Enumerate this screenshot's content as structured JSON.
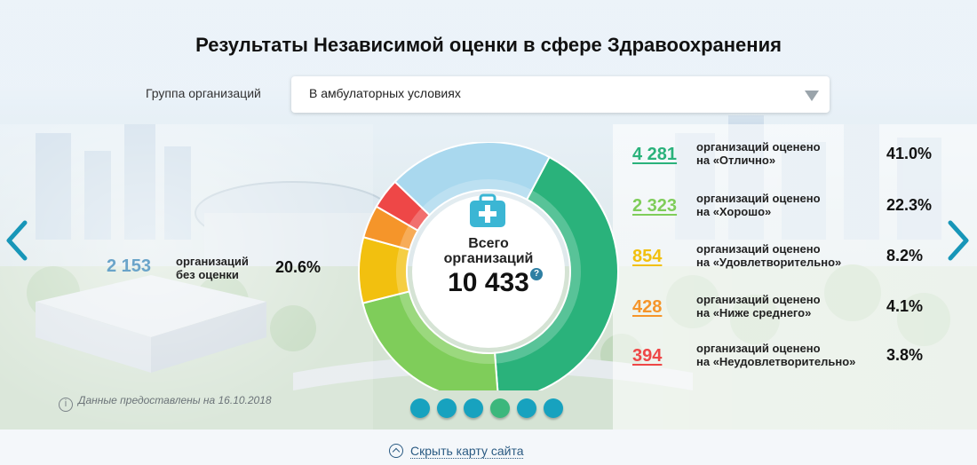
{
  "title": "Результаты Независимой оценки в сфере Здравоохранения",
  "filter": {
    "label": "Группа организаций",
    "selected": "В амбулаторных условиях"
  },
  "no_evaluation": {
    "count": "2 153",
    "desc_line1": "организаций",
    "desc_line2": "без оценки",
    "percent": "20.6%"
  },
  "center": {
    "label_line1": "Всего",
    "label_line2": "организаций",
    "total": "10 433"
  },
  "stats": [
    {
      "count": "4 281",
      "line1": "организаций оценено",
      "line2": "на «Отлично»",
      "percent": "41.0%",
      "color": "#2ab27b"
    },
    {
      "count": "2 323",
      "line1": "организаций оценено",
      "line2": "на «Хорошо»",
      "percent": "22.3%",
      "color": "#7fcd5a"
    },
    {
      "count": "854",
      "line1": "организаций оценено",
      "line2": "на «Удовлетворительно»",
      "percent": "8.2%",
      "color": "#f2c00f"
    },
    {
      "count": "428",
      "line1": "организаций оценено",
      "line2": "на «Ниже среднего»",
      "percent": "4.1%",
      "color": "#f5952a"
    },
    {
      "count": "394",
      "line1": "организаций оценено",
      "line2": "на «Неудовлетворительно»",
      "percent": "3.8%",
      "color": "#ee4747"
    }
  ],
  "no_eval_color": "#a9d8ee",
  "source_note": "Данные предоставлены на 16.10.2018",
  "pager": {
    "count": 6,
    "active_index": 3,
    "color": "#17a2bf",
    "active_color": "#3cb77c"
  },
  "footer_link": "Скрыть карту сайта",
  "icons": {
    "prev": "chevron-left-icon",
    "next": "chevron-right-icon",
    "center": "medical-kit-icon",
    "help": "question-icon",
    "info": "info-icon"
  }
}
